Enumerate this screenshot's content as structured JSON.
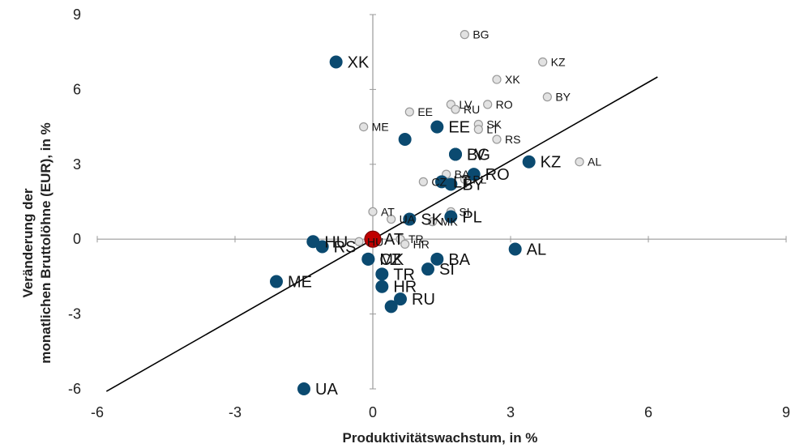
{
  "chart_data": {
    "type": "scatter",
    "title": "",
    "xlabel": "Produktivitätswachstum, in %",
    "ylabel_line1": "Veränderung der",
    "ylabel_line2": "monatlichen Bruttolöhne (EUR), in %",
    "xlim": [
      -6,
      9
    ],
    "ylim": [
      -6,
      9
    ],
    "x_ticks": [
      "-6",
      "-3",
      "0",
      "3",
      "6",
      "9"
    ],
    "y_ticks": [
      "-6",
      "-3",
      "0",
      "3",
      "6",
      "9"
    ],
    "grid": false,
    "legend": "none",
    "colors": {
      "series_dark": "#0b4a70",
      "series_light_fill": "#e2e2e2",
      "series_light_stroke": "#9a9a9a",
      "highlight": "#c00000",
      "fit_line": "#000000",
      "axis": "#9a9a9a"
    },
    "trend_line": {
      "x": [
        -5.8,
        6.2
      ],
      "y": [
        -6.1,
        6.5
      ]
    },
    "series": [
      {
        "style": "dark",
        "points": [
          {
            "label": "XK",
            "x": -0.8,
            "y": 7.1
          },
          {
            "label": "EE",
            "x": 1.4,
            "y": 4.5
          },
          {
            "label": "",
            "x": 0.7,
            "y": 4.0
          },
          {
            "label": "BG",
            "x": 1.8,
            "y": 3.4
          },
          {
            "label": "LV",
            "x": 1.8,
            "y": 3.4
          },
          {
            "label": "KZ",
            "x": 3.4,
            "y": 3.1
          },
          {
            "label": "RO",
            "x": 2.2,
            "y": 2.6
          },
          {
            "label": "LT",
            "x": 1.5,
            "y": 2.3
          },
          {
            "label": "BY",
            "x": 1.7,
            "y": 2.2
          },
          {
            "label": "PL",
            "x": 1.7,
            "y": 0.9
          },
          {
            "label": "SK",
            "x": 0.8,
            "y": 0.8
          },
          {
            "label": "AT",
            "x": 0.0,
            "y": 0.0
          },
          {
            "label": "HU",
            "x": -1.3,
            "y": -0.1
          },
          {
            "label": "RS",
            "x": -1.1,
            "y": -0.3
          },
          {
            "label": "AL",
            "x": 3.1,
            "y": -0.4
          },
          {
            "label": "BA",
            "x": 1.4,
            "y": -0.8
          },
          {
            "label": "SI",
            "x": 1.2,
            "y": -1.2
          },
          {
            "label": "MK",
            "x": -0.1,
            "y": -0.8
          },
          {
            "label": "CZ",
            "x": -0.1,
            "y": -0.8
          },
          {
            "label": "TR",
            "x": 0.2,
            "y": -1.4
          },
          {
            "label": "HR",
            "x": 0.2,
            "y": -1.9
          },
          {
            "label": "ME",
            "x": -2.1,
            "y": -1.7
          },
          {
            "label": "RU",
            "x": 0.6,
            "y": -2.4
          },
          {
            "label": "",
            "x": 0.4,
            "y": -2.7
          },
          {
            "label": "UA",
            "x": -1.5,
            "y": -6.0
          }
        ]
      },
      {
        "style": "light",
        "points": [
          {
            "label": "BG",
            "x": 2.0,
            "y": 8.2
          },
          {
            "label": "KZ",
            "x": 3.7,
            "y": 7.1
          },
          {
            "label": "XK",
            "x": 2.7,
            "y": 6.4
          },
          {
            "label": "BY",
            "x": 3.8,
            "y": 5.7
          },
          {
            "label": "EE",
            "x": 0.8,
            "y": 5.1
          },
          {
            "label": "LV",
            "x": 1.7,
            "y": 5.4
          },
          {
            "label": "RU",
            "x": 1.8,
            "y": 5.2
          },
          {
            "label": "RO",
            "x": 2.5,
            "y": 5.4
          },
          {
            "label": "ME",
            "x": -0.2,
            "y": 4.5
          },
          {
            "label": "SK",
            "x": 2.3,
            "y": 4.6
          },
          {
            "label": "LT",
            "x": 2.3,
            "y": 4.4
          },
          {
            "label": "RS",
            "x": 2.7,
            "y": 4.0
          },
          {
            "label": "AL",
            "x": 4.5,
            "y": 3.1
          },
          {
            "label": "CZ",
            "x": 1.1,
            "y": 2.3
          },
          {
            "label": "BA",
            "x": 1.6,
            "y": 2.6
          },
          {
            "label": "PL",
            "x": 2.0,
            "y": 2.4
          },
          {
            "label": "SI",
            "x": 1.7,
            "y": 1.1
          },
          {
            "label": "AT",
            "x": 0.0,
            "y": 1.1
          },
          {
            "label": "UA",
            "x": 0.4,
            "y": 0.8
          },
          {
            "label": "MK",
            "x": 1.3,
            "y": 0.7
          },
          {
            "label": "HU",
            "x": -0.3,
            "y": -0.1
          },
          {
            "label": "TR",
            "x": 0.6,
            "y": 0.0
          },
          {
            "label": "HR",
            "x": 0.7,
            "y": -0.2
          }
        ]
      },
      {
        "style": "highlight",
        "points": [
          {
            "label": "",
            "x": 0.0,
            "y": 0.0
          }
        ]
      }
    ]
  }
}
